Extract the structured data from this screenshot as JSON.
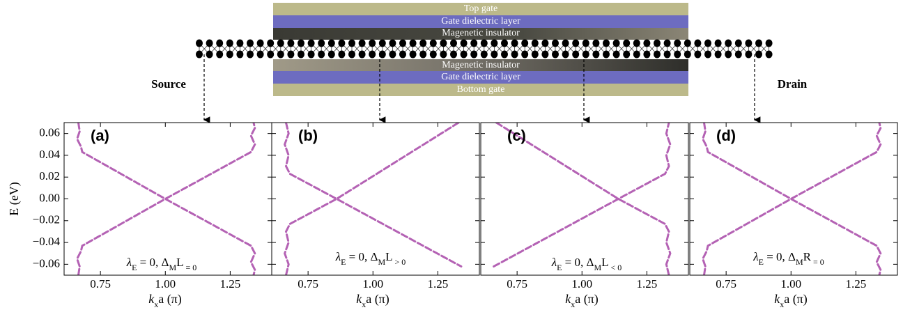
{
  "schematic": {
    "top_gate": "Top gate",
    "top_dielectric": "Gate dielectric layer",
    "top_magnetic": "Magenetic insulator",
    "bottom_magnetic": "Magenetic insulator",
    "bottom_dielectric": "Gate dielectric layer",
    "bottom_gate": "Bottom gate",
    "source": "Source",
    "drain": "Drain"
  },
  "chart_data": [
    {
      "type": "line",
      "panel_label": "(a)",
      "color": "#b462b4",
      "ylabel": "E (eV)",
      "xlabel_parts": [
        "k",
        "x",
        "a (π)"
      ],
      "annotation_parts": [
        "λ",
        "E",
        " = 0, Δ",
        "M",
        "L",
        " = 0"
      ],
      "xlim": [
        0.61,
        1.41
      ],
      "ylim": [
        -0.07,
        0.07
      ],
      "xticks": [
        0.75,
        {
          "value": 1,
          "label": "1.00"
        },
        1.25
      ],
      "yticks": [
        {
          "value": -0.06,
          "label": "−0.06"
        },
        {
          "value": -0.04,
          "label": "−0.04"
        },
        {
          "value": -0.02,
          "label": "−0.02"
        },
        {
          "value": 0,
          "label": "0.00"
        },
        0.02,
        0.04,
        0.06
      ],
      "series": [
        {
          "x": [
            0.665,
            0.67,
            0.66,
            0.675,
            0.68,
            1.0,
            1.33,
            1.345,
            1.33,
            1.345,
            1.34
          ],
          "values": [
            0.07,
            0.062,
            0.055,
            0.048,
            0.043,
            0,
            -0.043,
            -0.05,
            -0.058,
            -0.065,
            -0.07
          ]
        },
        {
          "x": [
            0.665,
            0.67,
            0.66,
            0.675,
            0.68,
            1.0,
            1.33,
            1.345,
            1.33,
            1.345,
            1.34
          ],
          "values": [
            -0.07,
            -0.062,
            -0.055,
            -0.048,
            -0.043,
            0,
            0.043,
            0.05,
            0.058,
            0.065,
            0.07
          ]
        }
      ]
    },
    {
      "type": "line",
      "panel_label": "(b)",
      "color": "#b462b4",
      "xlabel_parts": [
        "k",
        "x",
        "a (π)"
      ],
      "annotation_parts": [
        "λ",
        "E",
        " = 0, Δ",
        "M",
        "L",
        " > 0"
      ],
      "xlim": [
        0.61,
        1.41
      ],
      "ylim": [
        -0.07,
        0.07
      ],
      "xticks": [
        0.75,
        {
          "value": 1,
          "label": "1.00"
        },
        1.25
      ],
      "yticks": [
        -0.06,
        -0.04,
        -0.02,
        0,
        0.02,
        0.04,
        0.06
      ],
      "series": [
        {
          "x": [
            0.665,
            0.675,
            0.66,
            0.675,
            0.665,
            0.68,
            0.86,
            1.34
          ],
          "values": [
            0.07,
            0.06,
            0.05,
            0.04,
            0.03,
            0.023,
            0,
            -0.062
          ]
        },
        {
          "x": [
            0.665,
            0.675,
            0.66,
            0.675,
            0.665,
            0.68,
            0.86,
            1.33
          ],
          "values": [
            -0.07,
            -0.06,
            -0.05,
            -0.04,
            -0.03,
            -0.023,
            0,
            0.07
          ]
        }
      ]
    },
    {
      "type": "line",
      "panel_label": "(c)",
      "color": "#b462b4",
      "xlabel_parts": [
        "k",
        "x",
        "a (π)"
      ],
      "annotation_parts": [
        "λ",
        "E",
        " = 0, Δ",
        "M",
        "L",
        " < 0"
      ],
      "xlim": [
        0.61,
        1.41
      ],
      "ylim": [
        -0.07,
        0.07
      ],
      "xticks": [
        0.75,
        {
          "value": 1,
          "label": "1.00"
        },
        1.25
      ],
      "yticks": [
        -0.06,
        -0.04,
        -0.02,
        0,
        0.02,
        0.04,
        0.06
      ],
      "series": [
        {
          "x": [
            0.67,
            1.14,
            1.32,
            1.335,
            1.325,
            1.34,
            1.325,
            1.335
          ],
          "values": [
            0.07,
            0,
            -0.023,
            -0.03,
            -0.04,
            -0.05,
            -0.06,
            -0.07
          ]
        },
        {
          "x": [
            0.66,
            1.14,
            1.32,
            1.335,
            1.325,
            1.34,
            1.325,
            1.335
          ],
          "values": [
            -0.062,
            0,
            0.023,
            0.03,
            0.04,
            0.05,
            0.06,
            0.07
          ]
        }
      ]
    },
    {
      "type": "line",
      "panel_label": "(d)",
      "color": "#b462b4",
      "xlabel_parts": [
        "k",
        "x",
        "a (π)"
      ],
      "annotation_parts": [
        "λ",
        "E",
        " = 0, Δ",
        "M",
        "R",
        " = 0"
      ],
      "xlim": [
        0.61,
        1.41
      ],
      "ylim": [
        -0.07,
        0.07
      ],
      "xticks": [
        0.75,
        {
          "value": 1,
          "label": "1.00"
        },
        1.25
      ],
      "yticks": [
        -0.06,
        -0.04,
        -0.02,
        0,
        0.02,
        0.04,
        0.06
      ],
      "series": [
        {
          "x": [
            0.665,
            0.67,
            0.66,
            0.675,
            0.68,
            1.0,
            1.33,
            1.345,
            1.33,
            1.345,
            1.34
          ],
          "values": [
            0.07,
            0.062,
            0.055,
            0.048,
            0.043,
            0,
            -0.043,
            -0.05,
            -0.058,
            -0.065,
            -0.07
          ]
        },
        {
          "x": [
            0.665,
            0.67,
            0.66,
            0.675,
            0.68,
            1.0,
            1.33,
            1.345,
            1.33,
            1.345,
            1.34
          ],
          "values": [
            -0.07,
            -0.062,
            -0.055,
            -0.048,
            -0.043,
            0,
            0.043,
            0.05,
            0.058,
            0.065,
            0.07
          ]
        }
      ]
    }
  ]
}
